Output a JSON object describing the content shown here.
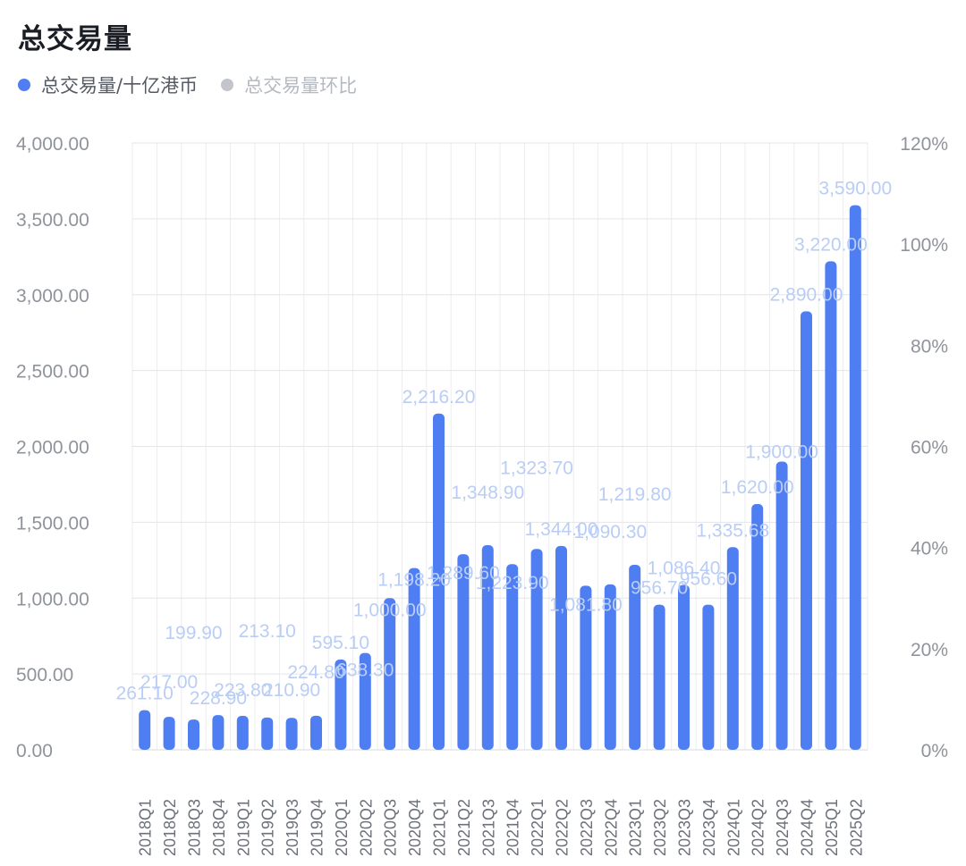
{
  "chart_data": {
    "type": "bar",
    "title": "总交易量",
    "legend": [
      {
        "label": "总交易量/十亿港币",
        "color": "#4f7ef3"
      },
      {
        "label": "总交易量环比",
        "color": "#c2c5ca"
      }
    ],
    "categories": [
      "2018Q1",
      "2018Q2",
      "2018Q3",
      "2018Q4",
      "2019Q1",
      "2019Q2",
      "2019Q3",
      "2019Q4",
      "2020Q1",
      "2020Q2",
      "2020Q3",
      "2020Q4",
      "2021Q1",
      "2021Q2",
      "2021Q3",
      "2021Q4",
      "2022Q1",
      "2022Q2",
      "2022Q3",
      "2022Q4",
      "2023Q1",
      "2023Q2",
      "2023Q3",
      "2023Q4",
      "2024Q1",
      "2024Q2",
      "2024Q3",
      "2024Q4",
      "2025Q1",
      "2025Q2"
    ],
    "series": [
      {
        "name": "总交易量/十亿港币",
        "values": [
          261.1,
          217.0,
          199.9,
          228.9,
          223.8,
          213.1,
          210.9,
          224.8,
          595.1,
          638.3,
          1000.0,
          1198.2,
          2216.2,
          1289.6,
          1348.9,
          1223.9,
          1323.7,
          1344.0,
          1081.8,
          1090.3,
          1219.8,
          956.7,
          1086.4,
          956.6,
          1335.68,
          1620.0,
          1900.0,
          2890.0,
          3220.0,
          3590.0
        ],
        "labels": [
          "261.10",
          "217.00",
          "199.90",
          "228.90",
          "223.80",
          "213.10",
          "210.90",
          "224.80",
          "595.10",
          "638.30",
          "1,000.00",
          "1,198.20",
          "2,216.20",
          "1,289.60",
          "1,348.90",
          "1,223.90",
          "1,323.70",
          "1,344.00",
          "1,081.80",
          "1,090.30",
          "1,219.80",
          "956.70",
          "1,086.40",
          "956.60",
          "1,335.68",
          "1,620.00",
          "1,900.00",
          "2,890.00",
          "3,220.00",
          "3,590.00"
        ],
        "color": "#4f7ef3"
      }
    ],
    "ylim": [
      0,
      4000
    ],
    "yticks": [
      "0.00",
      "500.00",
      "1,000.00",
      "1,500.00",
      "2,000.00",
      "2,500.00",
      "3,000.00",
      "3,500.00",
      "4,000.00"
    ],
    "y2lim": [
      0,
      120
    ],
    "y2ticks": [
      "0%",
      "20%",
      "40%",
      "60%",
      "80%",
      "100%",
      "120%"
    ],
    "grid": true,
    "legend_position": "top-left"
  }
}
